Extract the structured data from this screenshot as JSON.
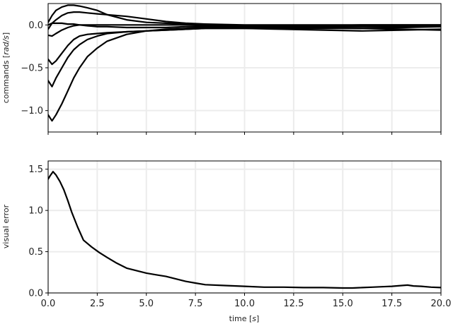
{
  "chart_data": [
    {
      "type": "line",
      "xlabel": "",
      "ylabel_main": "commands [",
      "ylabel_unit": "rad/s",
      "ylabel_close": "]",
      "xlim": [
        0,
        20
      ],
      "ylim": [
        -1.25,
        0.25
      ],
      "xticks": [
        0,
        2.5,
        5,
        7.5,
        10,
        12.5,
        15,
        17.5,
        20
      ],
      "yticks": [
        -1.0,
        -0.5,
        0.0
      ],
      "ytick_labels": [
        "−1.0",
        "−0.5",
        "0.0"
      ],
      "xtick_labels_visible": false,
      "grid": true,
      "series": [
        {
          "x": [
            0,
            0.2,
            0.4,
            0.7,
            1.0,
            1.3,
            1.6,
            2.0,
            2.5,
            3.0,
            4.0,
            5.0,
            6.0,
            7.0,
            8.0,
            10.0,
            12.0,
            14.0,
            16.0,
            18.0,
            20.0
          ],
          "y": [
            -1.05,
            -1.12,
            -1.05,
            -0.92,
            -0.77,
            -0.62,
            -0.5,
            -0.37,
            -0.27,
            -0.19,
            -0.11,
            -0.07,
            -0.05,
            -0.04,
            -0.03,
            -0.03,
            -0.03,
            -0.02,
            -0.02,
            -0.02,
            -0.02
          ]
        },
        {
          "x": [
            0,
            0.2,
            0.4,
            0.7,
            1.0,
            1.3,
            1.6,
            2.0,
            2.5,
            3.0,
            4.0,
            5.0,
            6.0,
            7.0,
            8.0,
            10.0,
            12.0,
            14.0,
            16.0,
            18.0,
            20.0
          ],
          "y": [
            -0.65,
            -0.72,
            -0.62,
            -0.5,
            -0.38,
            -0.29,
            -0.23,
            -0.17,
            -0.13,
            -0.1,
            -0.08,
            -0.07,
            -0.06,
            -0.05,
            -0.04,
            -0.04,
            -0.04,
            -0.04,
            -0.04,
            -0.03,
            -0.02
          ]
        },
        {
          "x": [
            0,
            0.2,
            0.4,
            0.7,
            1.0,
            1.3,
            1.6,
            2.0,
            2.5,
            3.0,
            4.0,
            5.0,
            6.0,
            7.0,
            8.0,
            10.0,
            12.0,
            14.0,
            16.0,
            18.0,
            20.0
          ],
          "y": [
            -0.4,
            -0.46,
            -0.42,
            -0.33,
            -0.24,
            -0.17,
            -0.13,
            -0.11,
            -0.1,
            -0.09,
            -0.08,
            -0.07,
            -0.06,
            -0.05,
            -0.04,
            -0.04,
            -0.05,
            -0.06,
            -0.07,
            -0.06,
            -0.05
          ]
        },
        {
          "x": [
            0,
            0.2,
            0.4,
            0.7,
            1.0,
            1.3,
            1.6,
            2.0,
            2.5,
            3.0,
            4.0,
            5.0,
            6.0,
            7.0,
            8.0,
            10.0,
            12.0,
            14.0,
            16.0,
            18.0,
            20.0
          ],
          "y": [
            -0.12,
            -0.13,
            -0.1,
            -0.06,
            -0.03,
            -0.01,
            0.0,
            0.0,
            0.0,
            0.0,
            0.0,
            0.0,
            0.0,
            0.0,
            -0.01,
            -0.02,
            -0.02,
            -0.03,
            -0.04,
            -0.05,
            -0.06
          ]
        },
        {
          "x": [
            0,
            0.2,
            0.4,
            0.7,
            1.0,
            1.3,
            1.6,
            2.0,
            2.5,
            3.0,
            4.0,
            5.0,
            6.0,
            7.0,
            8.0,
            10.0,
            12.0,
            14.0,
            16.0,
            18.0,
            20.0
          ],
          "y": [
            0.0,
            0.02,
            0.02,
            0.02,
            0.01,
            0.01,
            0.0,
            -0.01,
            -0.02,
            -0.02,
            -0.03,
            -0.03,
            -0.03,
            -0.02,
            -0.02,
            -0.02,
            -0.02,
            -0.01,
            0.0,
            0.0,
            0.0
          ]
        },
        {
          "x": [
            0,
            0.2,
            0.4,
            0.7,
            1.0,
            1.3,
            1.6,
            2.0,
            2.5,
            3.0,
            4.0,
            5.0,
            6.0,
            7.0,
            8.0,
            10.0,
            12.0,
            14.0,
            16.0,
            18.0,
            20.0
          ],
          "y": [
            -0.05,
            0.02,
            0.06,
            0.11,
            0.14,
            0.15,
            0.15,
            0.14,
            0.13,
            0.12,
            0.1,
            0.07,
            0.04,
            0.02,
            0.01,
            0.0,
            0.0,
            0.0,
            0.0,
            0.0,
            0.0
          ]
        },
        {
          "x": [
            0,
            0.2,
            0.4,
            0.7,
            1.0,
            1.3,
            1.6,
            2.0,
            2.5,
            3.0,
            4.0,
            5.0,
            6.0,
            7.0,
            8.0,
            10.0,
            12.0,
            14.0,
            16.0,
            18.0,
            20.0
          ],
          "y": [
            0.03,
            0.11,
            0.17,
            0.21,
            0.23,
            0.23,
            0.22,
            0.2,
            0.17,
            0.12,
            0.06,
            0.03,
            0.02,
            0.01,
            0.0,
            -0.01,
            -0.01,
            -0.01,
            -0.01,
            -0.01,
            -0.01
          ]
        }
      ]
    },
    {
      "type": "line",
      "xlabel_main": "time [",
      "xlabel_unit": "s",
      "xlabel_close": "]",
      "ylabel": "visual error",
      "xlim": [
        0,
        20
      ],
      "ylim": [
        0,
        1.6
      ],
      "xticks": [
        0,
        2.5,
        5,
        7.5,
        10,
        12.5,
        15,
        17.5,
        20
      ],
      "xtick_labels": [
        "0.0",
        "2.5",
        "5.0",
        "7.5",
        "10.0",
        "12.5",
        "15.0",
        "17.5",
        "20.0"
      ],
      "yticks": [
        0,
        0.5,
        1.0,
        1.5
      ],
      "ytick_labels": [
        "0.0",
        "0.5",
        "1.0",
        "1.5"
      ],
      "grid": true,
      "series": [
        {
          "x": [
            0,
            0.1,
            0.25,
            0.4,
            0.6,
            0.8,
            1.0,
            1.2,
            1.5,
            1.8,
            2.2,
            2.6,
            3.0,
            3.5,
            4.0,
            4.5,
            5.0,
            5.5,
            6.0,
            6.5,
            7.0,
            7.5,
            8.0,
            9.0,
            10.0,
            11.0,
            12.0,
            13.0,
            14.0,
            15.0,
            15.5,
            16.0,
            16.5,
            17.0,
            17.5,
            18.0,
            18.3,
            18.6,
            19.0,
            19.5,
            20.0
          ],
          "y": [
            1.38,
            1.42,
            1.47,
            1.43,
            1.35,
            1.25,
            1.12,
            0.98,
            0.8,
            0.64,
            0.56,
            0.49,
            0.43,
            0.36,
            0.3,
            0.27,
            0.24,
            0.22,
            0.2,
            0.17,
            0.14,
            0.12,
            0.1,
            0.09,
            0.08,
            0.07,
            0.07,
            0.065,
            0.065,
            0.06,
            0.06,
            0.065,
            0.07,
            0.075,
            0.08,
            0.09,
            0.095,
            0.085,
            0.08,
            0.07,
            0.065
          ]
        }
      ]
    }
  ]
}
